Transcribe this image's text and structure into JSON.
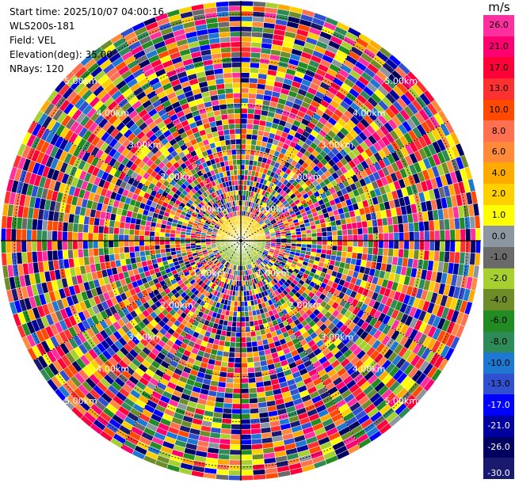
{
  "header": {
    "start_time": "Start time: 2025/10/07 04:00:16",
    "instrument": "WLS200s-181",
    "field": "Field: VEL",
    "elevation": "Elevation(deg): 35.00",
    "nrays": "NRays: 120"
  },
  "colorbar": {
    "unit": "m/s",
    "ticks": [
      "26.0",
      "21.0",
      "17.0",
      "13.0",
      "10.0",
      "8.0",
      "6.0",
      "4.0",
      "2.0",
      "1.0",
      "0.0",
      "-1.0",
      "-2.0",
      "-4.0",
      "-6.0",
      "-8.0",
      "-10.0",
      "-13.0",
      "-17.0",
      "-21.0",
      "-26.0",
      "-30.0"
    ],
    "colors": [
      "#ff2fa0",
      "#ff0070",
      "#ff0038",
      "#ff3030",
      "#ff4a00",
      "#ff7050",
      "#ff8a3a",
      "#ffaa00",
      "#ffd000",
      "#ffff00",
      "#8c96a0",
      "#6a6a6a",
      "#a6d030",
      "#6e8c28",
      "#228b22",
      "#2e8b57",
      "#1e78d2",
      "#3050d0",
      "#0000ff",
      "#0000a0",
      "#000060",
      "#191970"
    ]
  },
  "chart_data": {
    "type": "ppi",
    "field": "VEL",
    "unit": "m/s",
    "elevation_deg": 35.0,
    "nrays": 120,
    "range_rings_km": [
      1.0,
      2.0,
      3.0,
      4.0,
      5.0
    ],
    "range_ring_labels": [
      "1.00km",
      "2.00km",
      "3.00km",
      "4.00km",
      "5.00km"
    ],
    "max_range_km": 5.3,
    "near_field": {
      "radius_km": 0.55,
      "north_color": "#ffd000",
      "south_color": "#8fbf3a"
    }
  }
}
